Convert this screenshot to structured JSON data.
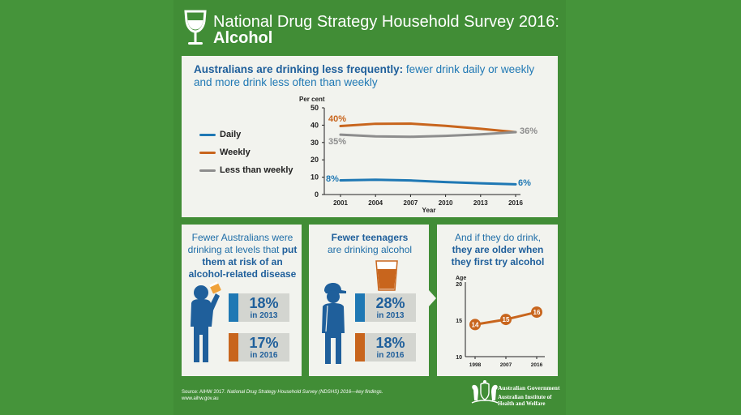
{
  "header": {
    "title": "National Drug Strategy Household Survey 2016:",
    "subtitle": "Alcohol"
  },
  "top_panel": {
    "headline_bold": "Australians are drinking less frequently:",
    "headline_rest": " fewer drink daily or weekly and more drink less often than weekly",
    "legend": [
      {
        "label": "Daily",
        "color": "#1f78b4"
      },
      {
        "label": "Weekly",
        "color": "#c8651d"
      },
      {
        "label": "Less than weekly",
        "color": "#8d8d8d"
      }
    ],
    "ylabel": "Per cent",
    "xlabel": "Year",
    "annotations": {
      "weekly_start": "40%",
      "lt_weekly_start": "35%",
      "end_shared": "36%",
      "daily_start": "8%",
      "daily_end": "6%"
    }
  },
  "chart_data": [
    {
      "type": "line",
      "x": [
        2001,
        2004,
        2007,
        2010,
        2013,
        2016
      ],
      "series": [
        {
          "name": "Daily",
          "values": [
            8.2,
            8.5,
            8.1,
            7.2,
            6.5,
            5.9
          ],
          "color": "#1f78b4"
        },
        {
          "name": "Weekly",
          "values": [
            39.5,
            40.8,
            40.9,
            39.6,
            37.9,
            36.0
          ],
          "color": "#c8651d"
        },
        {
          "name": "Less than weekly",
          "values": [
            34.5,
            33.5,
            33.3,
            33.8,
            34.7,
            36.0
          ],
          "color": "#8d8d8d"
        }
      ],
      "ylim": [
        0,
        50
      ],
      "yticks": [
        "0",
        "10",
        "20",
        "30",
        "40",
        "50"
      ],
      "xticks": [
        "2001",
        "2004",
        "2007",
        "2010",
        "2013",
        "2016"
      ],
      "ylabel": "Per cent",
      "xlabel": "Year",
      "legend_position": "left",
      "grid": false
    },
    {
      "type": "line",
      "x": [
        1998,
        2007,
        2016
      ],
      "series": [
        {
          "name": "",
          "values": [
            14.4,
            15.1,
            16.1
          ],
          "color": "#c8651d"
        }
      ],
      "point_labels": [
        "14",
        "15",
        "16"
      ],
      "ylim": [
        10,
        20
      ],
      "yticks": [
        "10",
        "15",
        "20"
      ],
      "xticks": [
        "1998",
        "2007",
        "2016"
      ],
      "ylabel": "Age",
      "grid": false
    }
  ],
  "risk_panel": {
    "title_plain": "Fewer Australians were drinking at levels that",
    "title_bold": "put them at risk of an alcohol-related disease",
    "stats": [
      {
        "pct": "18%",
        "year": "in 2013",
        "color": "#1f78b4"
      },
      {
        "pct": "17%",
        "year": "in 2016",
        "color": "#c8651d"
      }
    ]
  },
  "teen_panel": {
    "title_bold": "Fewer teenagers",
    "title_plain": "are drinking alcohol",
    "stats": [
      {
        "pct": "28%",
        "year": "in 2013",
        "color": "#1f78b4"
      },
      {
        "pct": "18%",
        "year": "in 2016",
        "color": "#c8651d"
      }
    ]
  },
  "age_panel": {
    "title_plain": "And if they do drink,",
    "title_bold": "they are older when they first try alcohol",
    "ylabel": "Age"
  },
  "footer": {
    "source_prefix": "Source: AIHW 2017. ",
    "source_italic": "National Drug Strategy Household Survey (NDSHS) 2016—key findings.",
    "url": "www.aihw.gov.au",
    "gov_line1": "Australian Government",
    "gov_line2": "Australian Institute of",
    "gov_line3": "Health and Welfare"
  },
  "colors": {
    "background": "#45943a",
    "panel": "#f2f3ee",
    "blue": "#1f78b4",
    "orange": "#c8651d",
    "grey": "#8d8d8d"
  }
}
